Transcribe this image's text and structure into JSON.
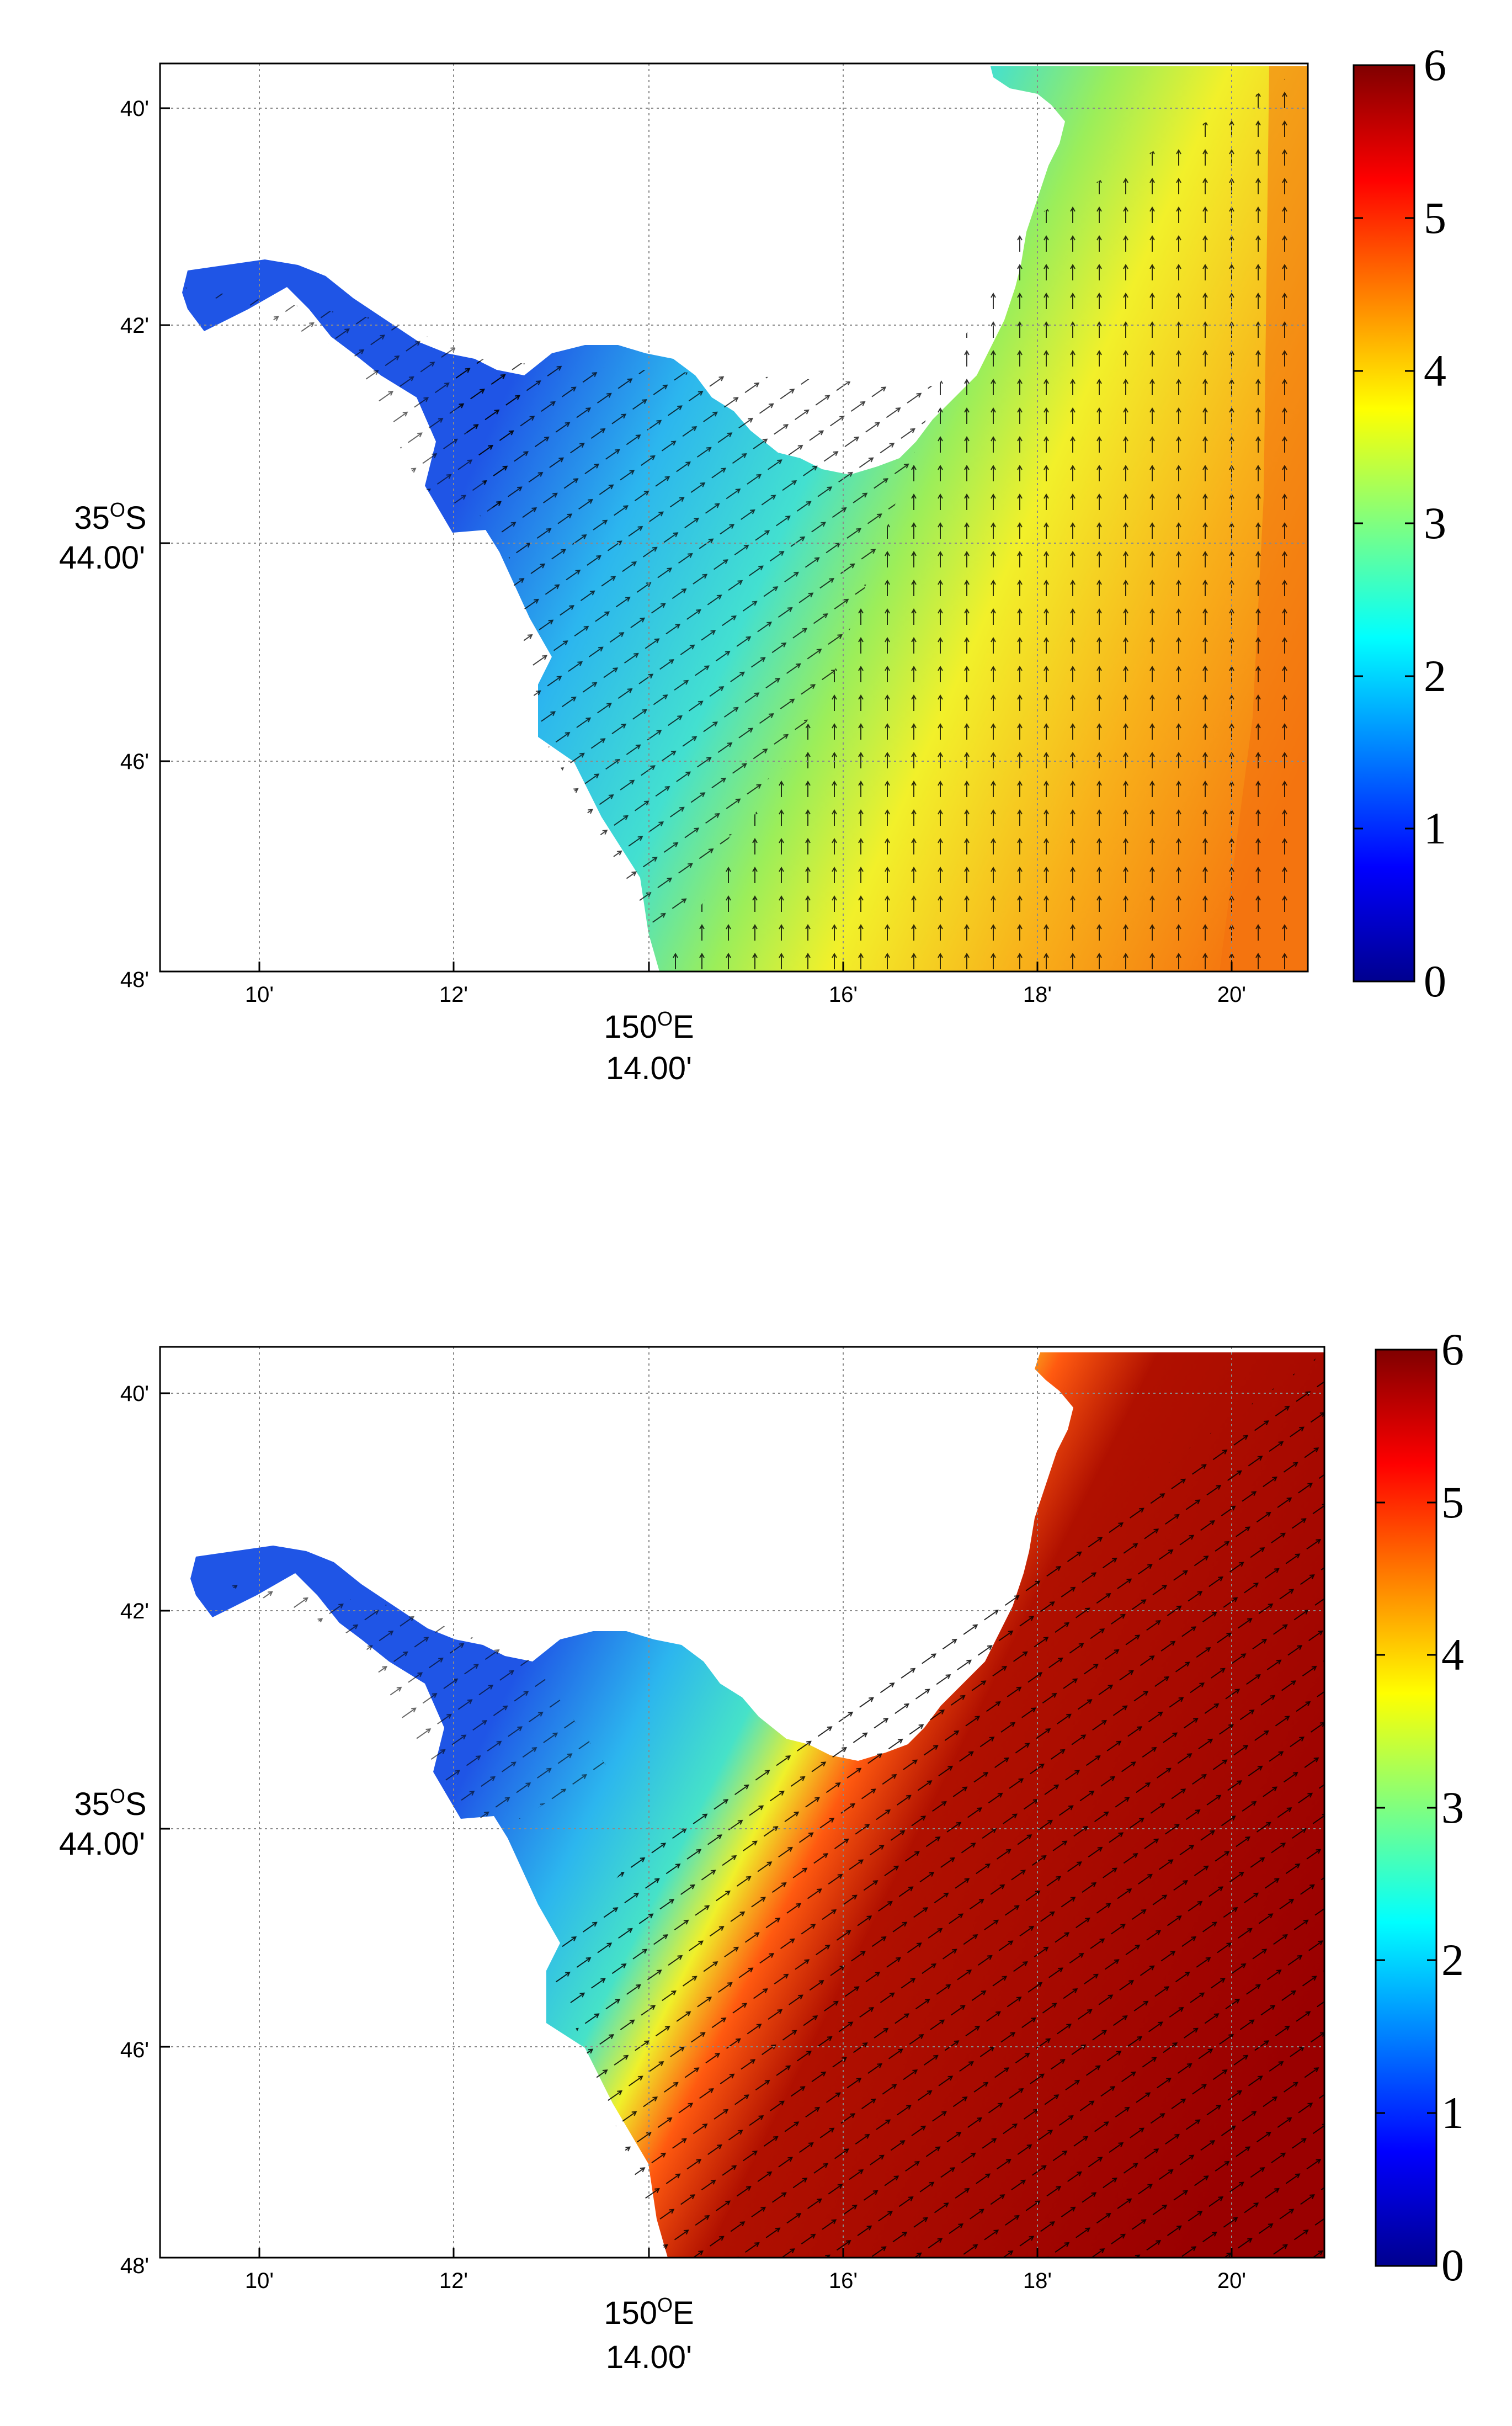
{
  "x_ticks": [
    "10'",
    "12'",
    "16'",
    "18'",
    "20'"
  ],
  "y_ticks": [
    "40'",
    "42'",
    "46'",
    "48'"
  ],
  "x_axis": {
    "deg": "150",
    "sup": "O",
    "hemi": "E",
    "minutes": "14.00'"
  },
  "y_axis": {
    "deg": "35",
    "sup": "O",
    "hemi": "S",
    "minutes": "44.00'"
  },
  "colorbar": {
    "ticks": [
      "6",
      "5",
      "4",
      "3",
      "2",
      "1",
      "0"
    ],
    "range": [
      0,
      6
    ],
    "colormap": "jet"
  },
  "panels": [
    {
      "id": "top",
      "description_level": "offshore values ~4-5"
    },
    {
      "id": "bottom",
      "description_level": "offshore values ~6"
    }
  ],
  "colors": {
    "land": "#ffffff",
    "grid": "#8a8a8a",
    "arrow": "#000000"
  }
}
